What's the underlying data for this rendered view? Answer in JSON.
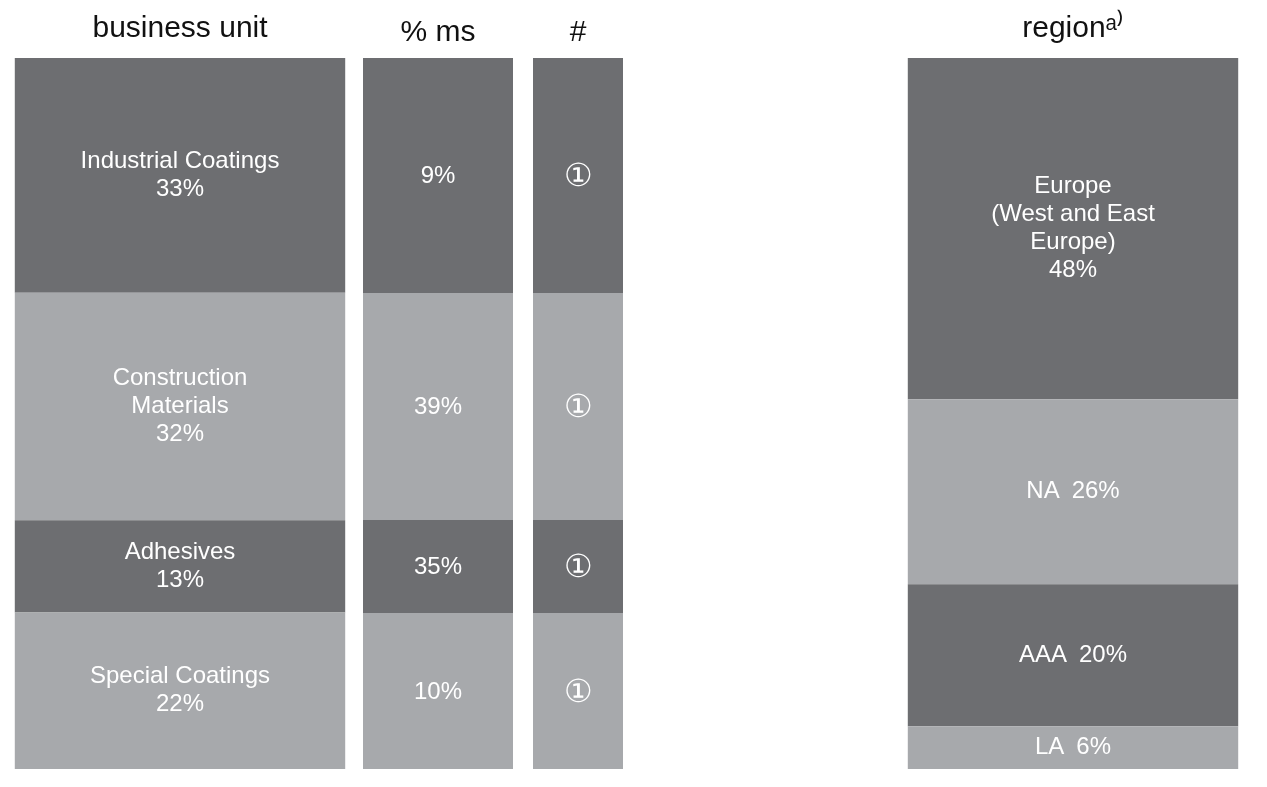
{
  "chart_data": [
    {
      "type": "bar",
      "stacked": true,
      "tick_labels": "x",
      "categories": [
        "business unit",
        "regionᵃ⁾"
      ],
      "series": [
        {
          "color": "#a7a9ac",
          "values": [
            22,
            null
          ],
          "value_labels": [
            "Special Coatings\n22%",
            null
          ]
        },
        {
          "color": "#6d6e71",
          "values": [
            13,
            null
          ],
          "value_labels": [
            "Adhesives\n13%",
            null
          ]
        },
        {
          "color": "#a7a9ac",
          "values": [
            32,
            null
          ],
          "value_labels": [
            "Construction\nMaterials\n32%",
            null
          ]
        },
        {
          "color": "#6d6e71",
          "values": [
            33,
            null
          ],
          "value_labels": [
            "Industrial Coatings\n33%",
            null
          ]
        },
        {
          "color": "#a7a9ac",
          "values": [
            null,
            6
          ],
          "value_labels": [
            null,
            "LA  6%"
          ]
        },
        {
          "color": "#6d6e71",
          "values": [
            null,
            20
          ],
          "value_labels": [
            null,
            "AAA  20%"
          ]
        },
        {
          "color": "#a7a9ac",
          "values": [
            null,
            26
          ],
          "value_labels": [
            null,
            "NA  26%"
          ]
        },
        {
          "color": "#6d6e71",
          "values": [
            null,
            48
          ],
          "value_labels": [
            null,
            "Europe\n(West and East\nEurope)\n48%"
          ]
        }
      ]
    },
    {
      "type": "other",
      "annotations": [
        "% ms",
        "9%",
        "39%",
        "35%",
        "10%",
        "#",
        "①",
        "①",
        "①",
        "①"
      ]
    }
  ]
}
